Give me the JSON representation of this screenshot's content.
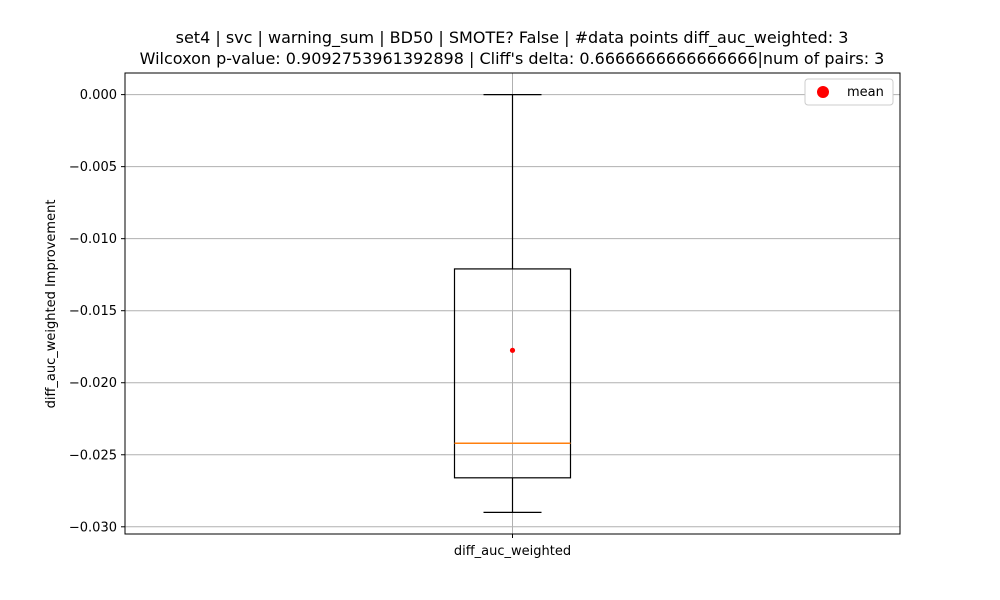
{
  "chart_data": {
    "type": "box",
    "title_line1": "set4 | svc | warning_sum | BD50 | SMOTE? False | #data points diff_auc_weighted: 3",
    "title_line2": "Wilcoxon p-value: 0.9092753961392898 | Cliff's delta: 0.6666666666666666|num of pairs: 3",
    "xlabel": "",
    "ylabel": "diff_auc_weighted Improvement",
    "categories": [
      "diff_auc_weighted"
    ],
    "ylim": [
      -0.0305,
      0.0015
    ],
    "yticks": [
      0.0,
      -0.005,
      -0.01,
      -0.015,
      -0.02,
      -0.025,
      -0.03
    ],
    "ytick_labels": [
      "0.000",
      "−0.005",
      "−0.010",
      "−0.015",
      "−0.020",
      "−0.025",
      "−0.030"
    ],
    "grid": true,
    "legend": {
      "position": "top-right",
      "entries": [
        {
          "label": "mean",
          "color": "#ff0000",
          "marker": "circle"
        }
      ]
    },
    "box": {
      "whisker_low": -0.029,
      "q1": -0.0266,
      "median": -0.0242,
      "q3": -0.0121,
      "whisker_high": 0.0,
      "mean": -0.01775
    },
    "colors": {
      "box": "#000000",
      "median": "#ff7f0e",
      "mean": "#ff0000",
      "grid": "#b0b0b0"
    }
  }
}
